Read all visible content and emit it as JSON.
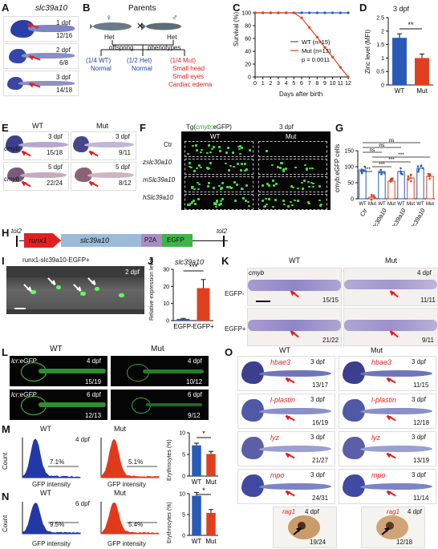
{
  "panels": {
    "A": {
      "letter": "A",
      "gene": "slc39a10",
      "rows": [
        {
          "stage": "1 dpf",
          "count": "12/16"
        },
        {
          "stage": "2 dpf",
          "count": "6/8"
        },
        {
          "stage": "3 dpf",
          "count": "14/18"
        }
      ]
    },
    "B": {
      "letter": "B",
      "parents": "Parents",
      "female": "♀",
      "male": "♂",
      "het_left": "Het",
      "het_right": "Het",
      "cross": "✕",
      "offspring": "offspring",
      "phenotypes": "phenotypes",
      "normal1_frac": "(1/4 WT)",
      "normal1": "Normal",
      "normal2_frac": "(1/2 Het)",
      "normal2": "Normal",
      "mut_frac": "(1/4 Mut)",
      "mut_lines": [
        "Small head",
        "Small eyes",
        "Cardiac edema"
      ]
    },
    "C": {
      "letter": "C",
      "ylabel": "Survival (%)",
      "xlabel": "Days after birth",
      "legend": [
        "WT (n=15)",
        "Mut (n=13)"
      ],
      "pval": "p = 0.0011"
    },
    "D": {
      "letter": "D",
      "title": "3 dpf",
      "ylabel": "Zinc level (MFI)",
      "sig": "**"
    },
    "E": {
      "letter": "E",
      "wt": "WT",
      "mut": "Mut",
      "gene": "cmyb",
      "cells": [
        {
          "stage": "3 dpf",
          "count": "15/18"
        },
        {
          "stage": "3 dpf",
          "count": "9/11"
        },
        {
          "stage": "5 dpf",
          "count": "22/24"
        },
        {
          "stage": "5 dpf",
          "count": "8/12"
        }
      ]
    },
    "F": {
      "letter": "F",
      "title_pre": "Tg(",
      "title_gene": "cmyb",
      "title_post": ":eGFP)",
      "stage": "3 dpf",
      "wt": "WT",
      "mut": "Mut",
      "rows": [
        "Ctr",
        "zslc30a10",
        "mSlc39a10",
        "hSlc39a10"
      ]
    },
    "G": {
      "letter": "G",
      "ylabel": "cmyb:eGFP cells",
      "groups": [
        "Ctr",
        "zslc30a10",
        "mSlc39a10",
        "hSlc39a10"
      ],
      "wt": "WT",
      "mut": "Mut",
      "sig": [
        "***",
        "***",
        "***",
        "***",
        "ns",
        "ns",
        "ns"
      ]
    },
    "H": {
      "letter": "H",
      "tol_left": "tol2",
      "tol_right": "tol2",
      "promoter": "runx1",
      "gene": "slc39a10",
      "p2a": "P2A",
      "egfp": "EGFP"
    },
    "I": {
      "letter": "I",
      "title": "runx1-slc39a10-EGFP+",
      "stage": "2 dpf"
    },
    "J": {
      "letter": "J",
      "gene": "slc39a10",
      "ylabel": "Relative expression level",
      "sig": "***",
      "cats": [
        "EGFP-",
        "EGFP+"
      ]
    },
    "K": {
      "letter": "K",
      "wt": "WT",
      "mut": "Mut",
      "gene": "cmyb",
      "stage": "4 dpf",
      "rows": [
        {
          "label": "EGFP-",
          "wt": "15/15",
          "mut": "11/11"
        },
        {
          "label": "EGFP+",
          "wt": "21/22",
          "mut": "9/11"
        }
      ]
    },
    "L": {
      "letter": "L",
      "wt": "WT",
      "mut": "Mut",
      "rows": [
        {
          "label": "lcr:eGFP",
          "stage": "4 dpf",
          "wt": "15/19",
          "mut": "10/12"
        },
        {
          "label": "lcr:eGFP",
          "stage": "6 dpf",
          "wt": "12/13",
          "mut": "9/12"
        }
      ]
    },
    "M": {
      "letter": "M",
      "stage": "4 dpf",
      "wt": "WT",
      "mut": "Mut",
      "wt_pct": "7.1%",
      "mut_pct": "5.1%",
      "ylabel": "Count",
      "xlabel": "GFP intensity",
      "bar_ylabel": "Erythrocytes (%)",
      "sig": "*"
    },
    "N": {
      "letter": "N",
      "stage": "6 dpf",
      "wt": "WT",
      "mut": "Mut",
      "wt_pct": "9.5%",
      "mut_pct": "5.4%",
      "ylabel": "Count",
      "xlabel": "GFP intensity",
      "bar_ylabel": "Erythrocytes (%)",
      "sig": "*"
    },
    "O": {
      "letter": "O",
      "wt": "WT",
      "mut": "Mut",
      "rows": [
        {
          "gene": "hbae3",
          "stage": "3 dpf",
          "wt": "13/17",
          "mut": "11/15"
        },
        {
          "gene": "l-plastin",
          "stage": "3 dpf",
          "wt": "16/19",
          "mut": "12/18"
        },
        {
          "gene": "lyz",
          "stage": "3 dpf",
          "wt": "21/27",
          "mut": "13/19"
        },
        {
          "gene": "mpo",
          "stage": "3 dpf",
          "wt": "24/31",
          "mut": "11/14"
        }
      ],
      "rag1": {
        "gene": "rag1",
        "stage": "4 dpf",
        "wt": "19/24",
        "mut": "12/18"
      }
    }
  },
  "chart_data": [
    {
      "type": "line",
      "panel": "C",
      "ylabel": "Survival (%)",
      "xlabel": "Days after birth",
      "xlim": [
        0,
        12
      ],
      "ylim": [
        0,
        100
      ],
      "series": [
        {
          "name": "WT (n=15)",
          "x": [
            0,
            1,
            2,
            3,
            4,
            5,
            6,
            7,
            8,
            9,
            10,
            11,
            12
          ],
          "values": [
            100,
            100,
            100,
            100,
            100,
            100,
            100,
            100,
            100,
            100,
            100,
            100,
            100
          ]
        },
        {
          "name": "Mut (n=13)",
          "x": [
            0,
            1,
            2,
            3,
            4,
            5,
            6,
            7,
            8,
            9,
            10,
            11,
            12
          ],
          "values": [
            100,
            100,
            100,
            100,
            100,
            100,
            92,
            77,
            62,
            46,
            31,
            15,
            0
          ]
        }
      ]
    },
    {
      "type": "bar",
      "panel": "D",
      "categories": [
        "WT",
        "Mut"
      ],
      "values": [
        1.75,
        1.0
      ],
      "ylabel": "Zinc level (MFI)",
      "ylim": [
        0,
        2.5
      ]
    },
    {
      "type": "bar",
      "panel": "G",
      "categories": [
        "Ctr WT",
        "Ctr Mut",
        "zslc30a10 WT",
        "zslc30a10 Mut",
        "mSlc39a10 WT",
        "mSlc39a10 Mut",
        "hSlc39a10 WT",
        "hSlc39a10 Mut"
      ],
      "values": [
        90,
        5,
        85,
        55,
        85,
        65,
        95,
        70
      ],
      "ylabel": "cmyb:eGFP cells",
      "ylim": [
        0,
        150
      ]
    },
    {
      "type": "bar",
      "panel": "J",
      "categories": [
        "EGFP-",
        "EGFP+"
      ],
      "values": [
        1,
        19
      ],
      "ylabel": "Relative expression level",
      "ylim": [
        0,
        30
      ]
    },
    {
      "type": "bar",
      "panel": "M",
      "categories": [
        "WT",
        "Mut"
      ],
      "values": [
        7.1,
        5.1
      ],
      "ylabel": "Erythrocytes (%)",
      "ylim": [
        0,
        10
      ]
    },
    {
      "type": "bar",
      "panel": "N",
      "categories": [
        "WT",
        "Mut"
      ],
      "values": [
        9.5,
        5.4
      ],
      "ylabel": "Erythrocytes (%)",
      "ylim": [
        0,
        10
      ]
    }
  ]
}
